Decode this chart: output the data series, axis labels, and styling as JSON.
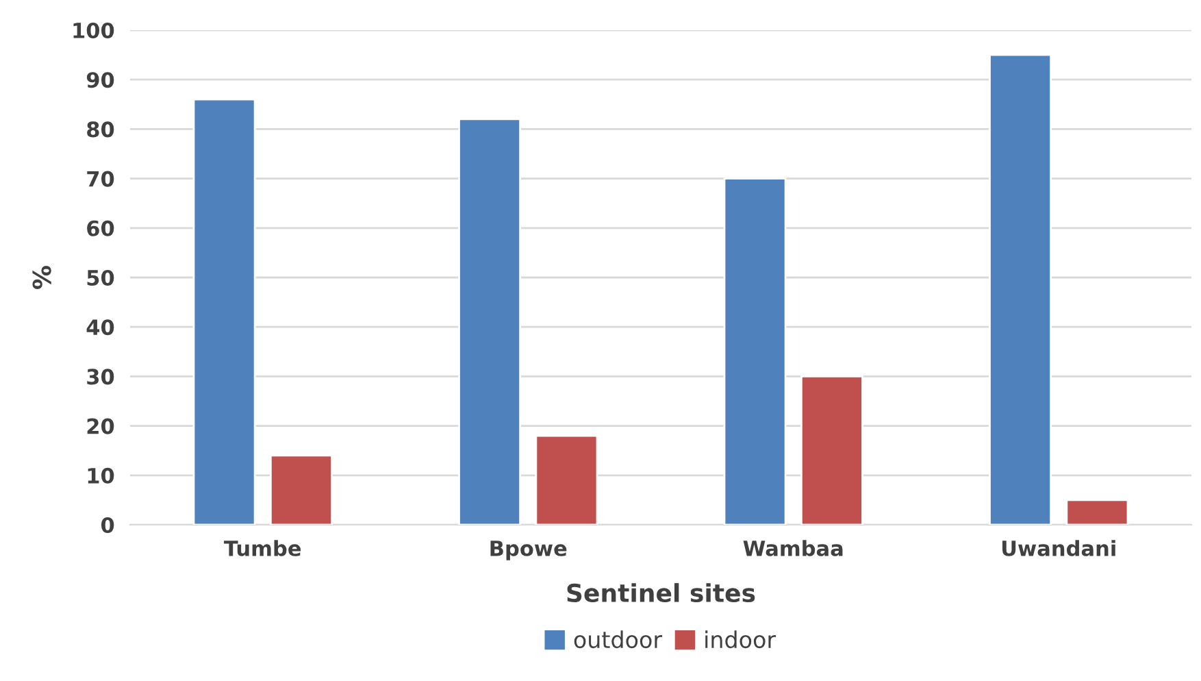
{
  "chart_data": {
    "type": "bar",
    "xlabel": "Sentinel sites",
    "ylabel": "%",
    "categories": [
      "Tumbe",
      "Bpowe",
      "Wambaa",
      "Uwandani"
    ],
    "series": [
      {
        "name": "outdoor",
        "color": "#4f81bd",
        "values": [
          86,
          82,
          70,
          95
        ]
      },
      {
        "name": "indoor",
        "color": "#c0504d",
        "values": [
          14,
          18,
          30,
          5
        ]
      }
    ],
    "ylim": [
      0,
      100
    ],
    "yticks": [
      0,
      10,
      20,
      30,
      40,
      50,
      60,
      70,
      80,
      90,
      100
    ],
    "grid": "y",
    "legend": "bottom"
  }
}
